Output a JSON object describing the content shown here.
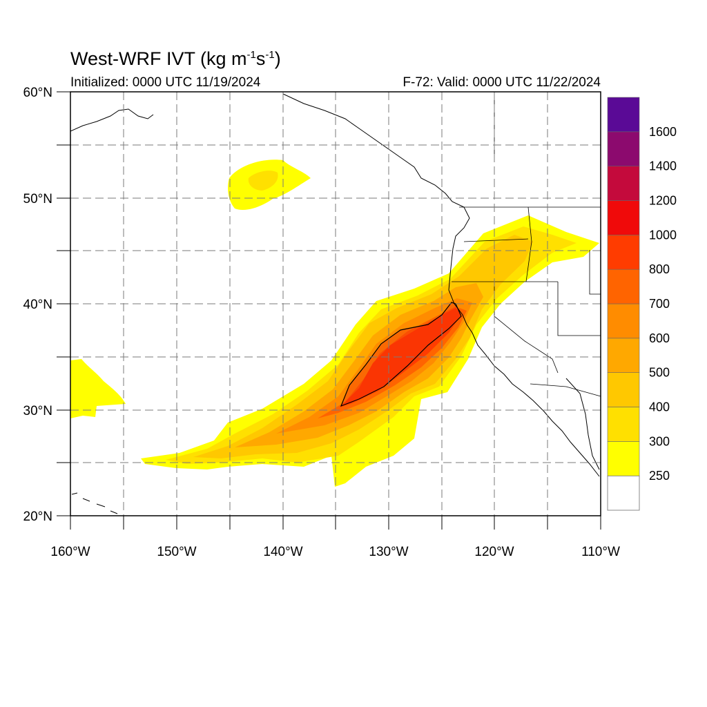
{
  "title": {
    "main": "West-WRF IVT (kg m",
    "sup1": "-1",
    "mid": "s",
    "sup2": "-1",
    "end": ")"
  },
  "initialized": "Initialized: 0000 UTC 11/19/2024",
  "valid": "F-72: Valid: 0000 UTC 11/22/2024",
  "map": {
    "lon_range": [
      -160,
      -110
    ],
    "lat_range": [
      20,
      60
    ],
    "lon_ticks": [
      "160°W",
      "150°W",
      "140°W",
      "130°W",
      "120°W",
      "110°W"
    ],
    "lat_ticks": [
      "20°N",
      "30°N",
      "40°N",
      "50°N",
      "60°N"
    ],
    "grid": "dashed, every 5°"
  },
  "colorbar": {
    "levels": [
      "250",
      "300",
      "400",
      "500",
      "600",
      "700",
      "800",
      "1000",
      "1200",
      "1400",
      "1600"
    ],
    "colors": [
      "#ffff00",
      "#ffe000",
      "#ffc800",
      "#ffa800",
      "#ff8c00",
      "#ff6400",
      "#ff3c00",
      "#f00a0a",
      "#c40a3c",
      "#8c0a6e",
      "#5a0a96"
    ]
  }
}
